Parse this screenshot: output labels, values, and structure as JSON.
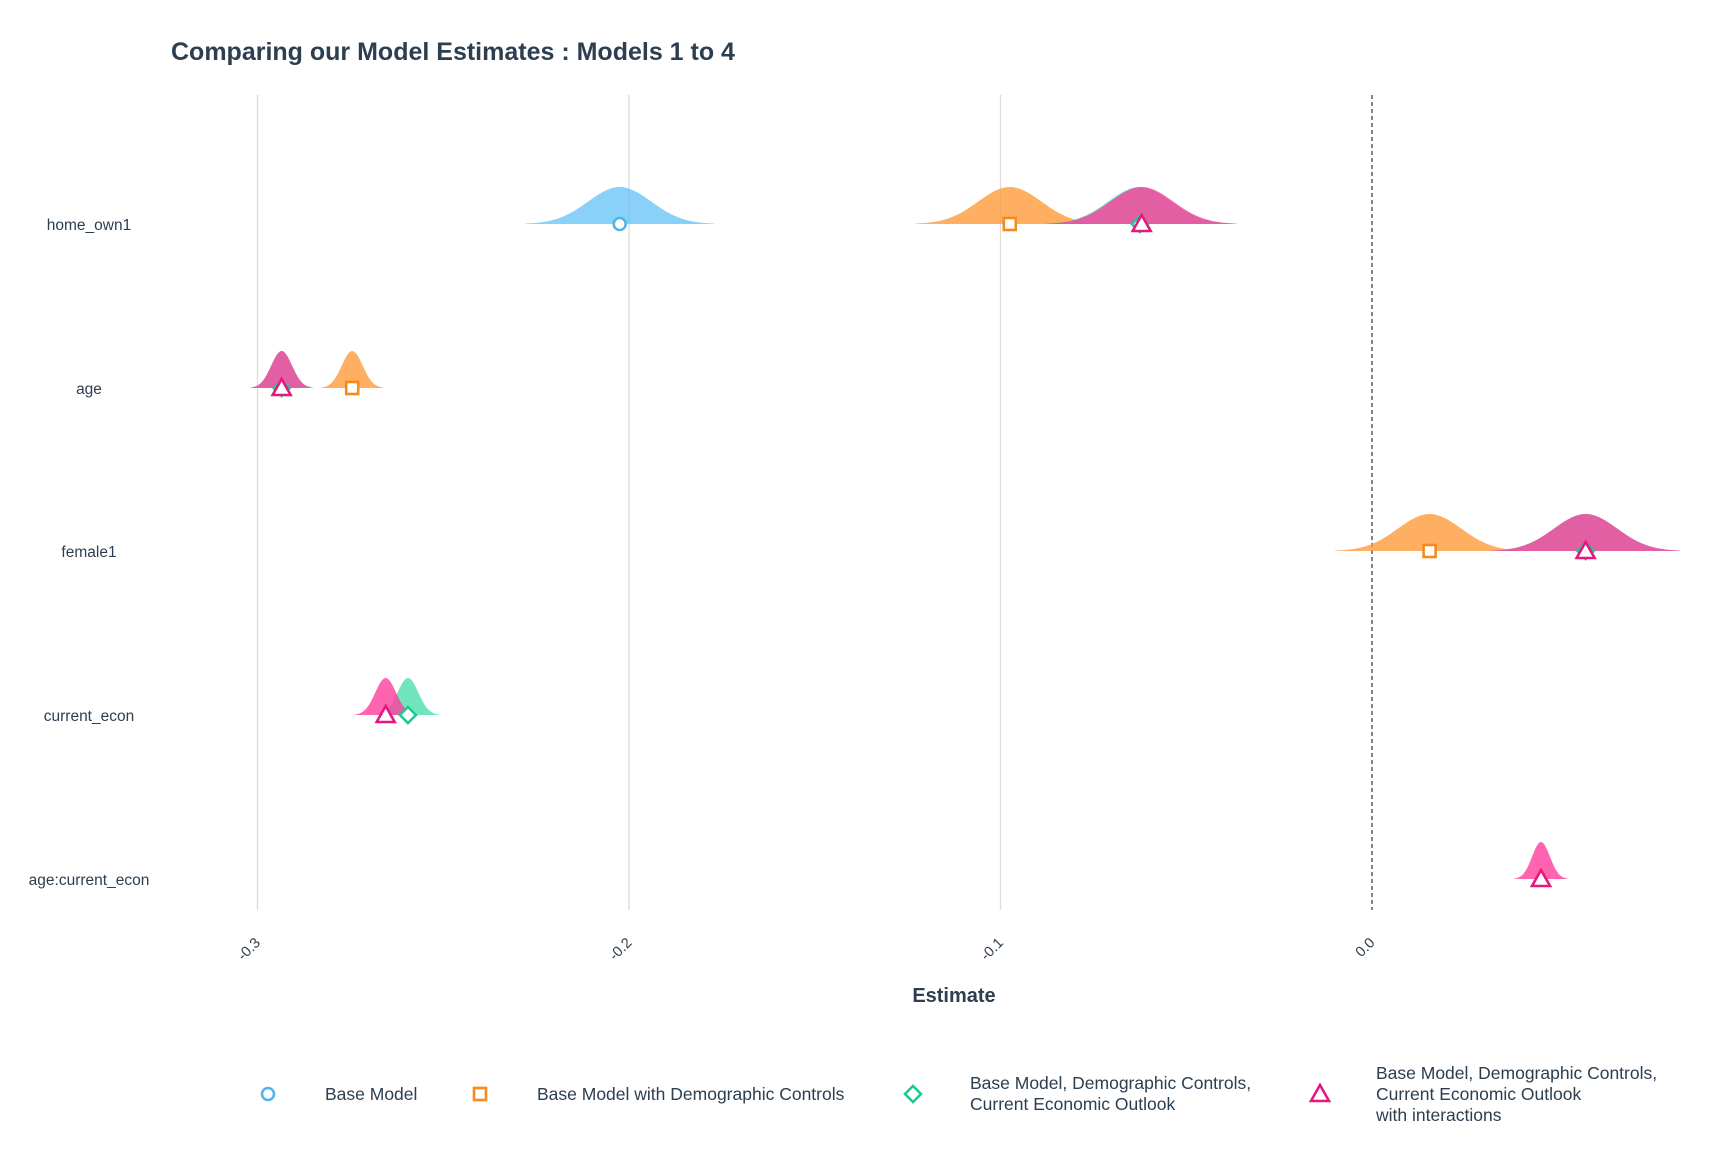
{
  "chart_data": {
    "type": "ridge-coefficient-plot",
    "title": "Comparing our Model Estimates : Models 1 to 4",
    "xlabel": "Estimate",
    "ylabel": "",
    "xlim": [
      -0.325,
      0.08
    ],
    "x_ticks": [
      {
        "value": -0.3,
        "label": "-0.3"
      },
      {
        "value": -0.2,
        "label": "-0.2"
      },
      {
        "value": -0.1,
        "label": "-0.1"
      },
      {
        "value": 0.0,
        "label": "0.0"
      }
    ],
    "reference_line": 0.0,
    "terms": [
      "home_own1",
      "age",
      "female1",
      "current_econ",
      "age:current_econ"
    ],
    "series": [
      {
        "name": "Base Model",
        "color": "#4fb7e8",
        "fill": "#6cc5f7",
        "shape": "circle",
        "estimates": [
          {
            "term": "home_own1",
            "estimate": -0.2025,
            "std_error": 0.0085
          }
        ]
      },
      {
        "name": "Base Model with Demographic Controls",
        "color": "#f58a1f",
        "fill": "#ff9b3a",
        "shape": "square",
        "estimates": [
          {
            "term": "home_own1",
            "estimate": -0.0975,
            "std_error": 0.0085
          },
          {
            "term": "age",
            "estimate": -0.2745,
            "std_error": 0.0028
          },
          {
            "term": "female1",
            "estimate": 0.0155,
            "std_error": 0.0085
          }
        ]
      },
      {
        "name": "Base Model, Demographic Controls,\nCurrent Economic Outlook",
        "color": "#1ec995",
        "fill": "#4de0ad",
        "shape": "diamond",
        "estimates": [
          {
            "term": "home_own1",
            "estimate": -0.0625,
            "std_error": 0.0085
          },
          {
            "term": "age",
            "estimate": -0.2935,
            "std_error": 0.0028
          },
          {
            "term": "female1",
            "estimate": 0.0575,
            "std_error": 0.0085
          },
          {
            "term": "current_econ",
            "estimate": -0.2595,
            "std_error": 0.0028
          }
        ]
      },
      {
        "name": "Base Model, Demographic Controls,\nCurrent Economic Outlook\nwith interactions",
        "color": "#e8177f",
        "fill": "#ff3d9e",
        "shape": "triangle",
        "estimates": [
          {
            "term": "home_own1",
            "estimate": -0.062,
            "std_error": 0.0085
          },
          {
            "term": "age",
            "estimate": -0.2935,
            "std_error": 0.0028
          },
          {
            "term": "female1",
            "estimate": 0.0575,
            "std_error": 0.0085
          },
          {
            "term": "current_econ",
            "estimate": -0.2655,
            "std_error": 0.0028
          },
          {
            "term": "age:current_econ",
            "estimate": 0.0455,
            "std_error": 0.0024
          }
        ]
      }
    ]
  }
}
